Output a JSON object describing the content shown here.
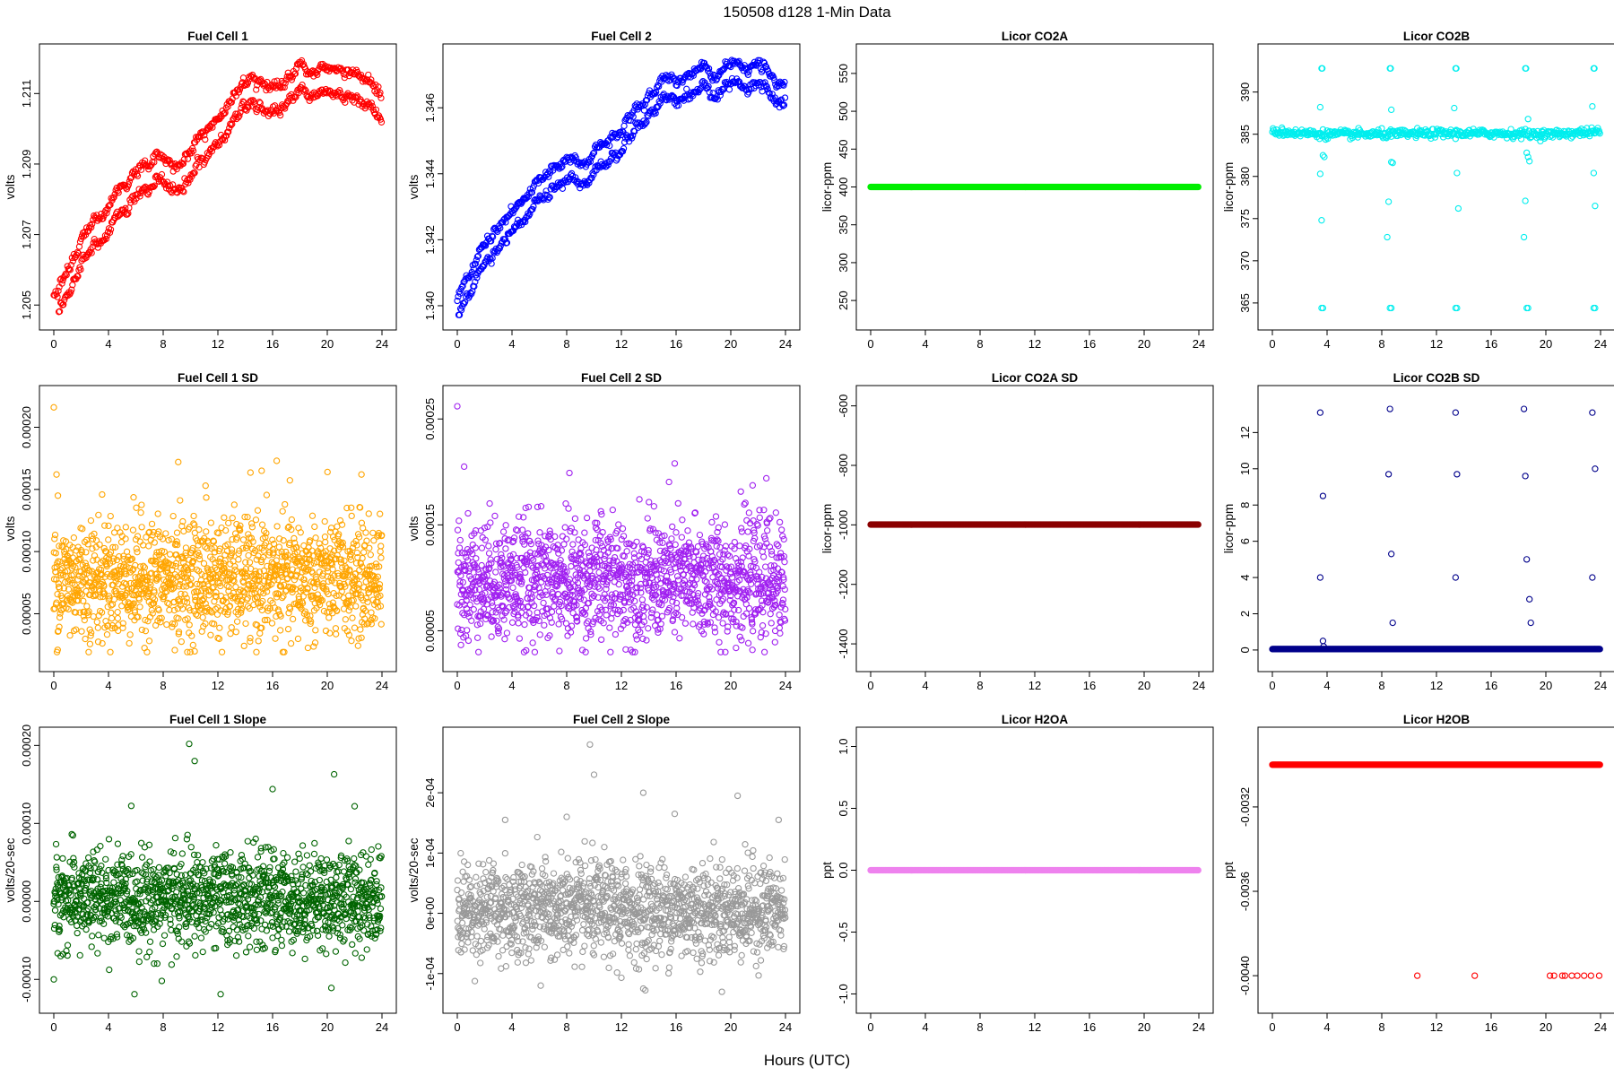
{
  "figure": {
    "title": "150508   d128   1-Min Data",
    "xlabel": "Hours (UTC)"
  },
  "chart_data": [
    {
      "type": "scatter",
      "title": "Fuel Cell 1",
      "ylabel": "volts",
      "color": "#ff0000",
      "xlim": [
        0,
        24
      ],
      "ylim": [
        1.2047,
        1.212
      ],
      "xticks": [
        0,
        4,
        8,
        12,
        16,
        20,
        24
      ],
      "yticks": [
        1.205,
        1.207,
        1.209,
        1.211
      ],
      "ytick_labels": [
        "1.205",
        "1.207",
        "1.209",
        "1.211"
      ],
      "trend": {
        "kind": "paired",
        "points": [
          [
            0,
            1.2049
          ],
          [
            1,
            1.2057
          ],
          [
            2,
            1.2065
          ],
          [
            3,
            1.207
          ],
          [
            4,
            1.2074
          ],
          [
            5,
            1.208
          ],
          [
            6,
            1.2085
          ],
          [
            7,
            1.2086
          ],
          [
            8,
            1.2089
          ],
          [
            9,
            1.2086
          ],
          [
            10,
            1.209
          ],
          [
            11,
            1.2095
          ],
          [
            12,
            1.21
          ],
          [
            13,
            1.2104
          ],
          [
            14,
            1.211
          ],
          [
            15,
            1.2111
          ],
          [
            16,
            1.2109
          ],
          [
            17,
            1.2111
          ],
          [
            18,
            1.2114
          ],
          [
            19,
            1.2111
          ],
          [
            20,
            1.2114
          ],
          [
            21,
            1.2113
          ],
          [
            22,
            1.2113
          ],
          [
            23,
            1.211
          ],
          [
            24,
            1.2107
          ]
        ],
        "offset": 0.0007,
        "jitter": 0.00012
      }
    },
    {
      "type": "scatter",
      "title": "Fuel Cell 2",
      "ylabel": "volts",
      "color": "#0000ff",
      "xlim": [
        0,
        24
      ],
      "ylim": [
        1.3397,
        1.3475
      ],
      "xticks": [
        0,
        4,
        8,
        12,
        16,
        20,
        24
      ],
      "yticks": [
        1.34,
        1.342,
        1.344,
        1.346
      ],
      "ytick_labels": [
        "1.340",
        "1.342",
        "1.344",
        "1.346"
      ],
      "trend": {
        "kind": "paired",
        "points": [
          [
            0,
            1.34
          ],
          [
            1,
            1.3406
          ],
          [
            2,
            1.3414
          ],
          [
            3,
            1.342
          ],
          [
            4,
            1.3425
          ],
          [
            5,
            1.343
          ],
          [
            6,
            1.3436
          ],
          [
            7,
            1.3438
          ],
          [
            8,
            1.3442
          ],
          [
            9,
            1.3439
          ],
          [
            10,
            1.3443
          ],
          [
            11,
            1.3448
          ],
          [
            12,
            1.3452
          ],
          [
            13,
            1.3456
          ],
          [
            14,
            1.3461
          ],
          [
            15,
            1.3465
          ],
          [
            16,
            1.3465
          ],
          [
            17,
            1.3466
          ],
          [
            18,
            1.347
          ],
          [
            19,
            1.3467
          ],
          [
            20,
            1.347
          ],
          [
            21,
            1.3469
          ],
          [
            22,
            1.347
          ],
          [
            23,
            1.3467
          ],
          [
            24,
            1.3464
          ]
        ],
        "offset": 0.0006,
        "jitter": 0.00012
      }
    },
    {
      "type": "scatter",
      "title": "Licor CO2A",
      "ylabel": "licor-ppm",
      "color": "#00ee00",
      "xlim": [
        0,
        24
      ],
      "ylim": [
        230,
        570
      ],
      "xticks": [
        0,
        4,
        8,
        12,
        16,
        20,
        24
      ],
      "yticks": [
        250,
        300,
        350,
        400,
        450,
        500,
        550
      ],
      "ytick_labels": [
        "250",
        "300",
        "350",
        "400",
        "450",
        "500",
        "550"
      ],
      "trend": {
        "kind": "constant",
        "value": 400
      }
    },
    {
      "type": "scatter",
      "title": "Licor CO2B",
      "ylabel": "licor-ppm",
      "color": "#00eeee",
      "xlim": [
        0,
        24
      ],
      "ylim": [
        363.5,
        394
      ],
      "xticks": [
        0,
        4,
        8,
        12,
        16,
        20,
        24
      ],
      "yticks": [
        365,
        370,
        375,
        380,
        385,
        390
      ],
      "ytick_labels": [
        "365",
        "370",
        "375",
        "380",
        "385",
        "390"
      ],
      "trend": {
        "kind": "band",
        "points": [
          [
            0,
            385.3
          ],
          [
            4,
            385.0
          ],
          [
            8,
            385.0
          ],
          [
            12,
            385.1
          ],
          [
            16,
            385.1
          ],
          [
            20,
            385.0
          ],
          [
            24,
            385.3
          ]
        ],
        "jitter": 0.25
      },
      "points": [
        [
          3.6,
          392.8
        ],
        [
          3.65,
          392.8
        ],
        [
          8.6,
          392.8
        ],
        [
          8.65,
          392.8
        ],
        [
          13.4,
          392.8
        ],
        [
          13.45,
          392.8
        ],
        [
          18.5,
          392.8
        ],
        [
          18.55,
          392.8
        ],
        [
          23.5,
          392.8
        ],
        [
          23.55,
          392.8
        ],
        [
          3.5,
          388.2
        ],
        [
          8.7,
          387.9
        ],
        [
          13.3,
          388.1
        ],
        [
          18.7,
          386.8
        ],
        [
          23.4,
          388.3
        ],
        [
          3.7,
          382.5
        ],
        [
          3.8,
          382.3
        ],
        [
          8.7,
          381.7
        ],
        [
          8.8,
          381.6
        ],
        [
          18.6,
          382.8
        ],
        [
          18.7,
          382.3
        ],
        [
          18.8,
          381.8
        ],
        [
          3.5,
          380.3
        ],
        [
          13.5,
          380.4
        ],
        [
          23.5,
          380.4
        ],
        [
          3.6,
          374.8
        ],
        [
          8.5,
          377.0
        ],
        [
          13.6,
          376.2
        ],
        [
          18.5,
          377.1
        ],
        [
          23.6,
          376.5
        ],
        [
          8.4,
          372.8
        ],
        [
          18.4,
          372.8
        ],
        [
          3.6,
          364.4
        ],
        [
          3.7,
          364.4
        ],
        [
          8.6,
          364.4
        ],
        [
          8.7,
          364.4
        ],
        [
          13.4,
          364.4
        ],
        [
          13.5,
          364.4
        ],
        [
          18.6,
          364.4
        ],
        [
          18.7,
          364.4
        ],
        [
          23.5,
          364.4
        ],
        [
          23.6,
          364.4
        ]
      ]
    },
    {
      "type": "scatter",
      "title": "Fuel Cell 1 SD",
      "ylabel": "volts",
      "color": "#ffa500",
      "xlim": [
        0,
        24
      ],
      "ylim": [
        1.5e-05,
        0.000222
      ],
      "xticks": [
        0,
        4,
        8,
        12,
        16,
        20,
        24
      ],
      "yticks": [
        5e-05,
        0.0001,
        0.00015,
        0.0002
      ],
      "ytick_labels": [
        "0.00005",
        "0.00010",
        "0.00015",
        "0.00020"
      ],
      "trend": {
        "kind": "noise",
        "mean": 7.8e-05,
        "sd": 2.4e-05
      },
      "points": [
        [
          0,
          0.000216
        ],
        [
          0.2,
          0.000162
        ],
        [
          9.1,
          0.000172
        ],
        [
          16.3,
          0.000173
        ],
        [
          0.3,
          0.000145
        ],
        [
          22.5,
          0.000162
        ],
        [
          11.1,
          0.000153
        ],
        [
          15.2,
          0.000165
        ]
      ]
    },
    {
      "type": "scatter",
      "title": "Fuel Cell 2 SD",
      "ylabel": "volts",
      "color": "#a020f0",
      "xlim": [
        0,
        24
      ],
      "ylim": [
        2.5e-05,
        0.000268
      ],
      "xticks": [
        0,
        4,
        8,
        12,
        16,
        20,
        24
      ],
      "yticks": [
        5e-05,
        0.00015,
        0.00025
      ],
      "ytick_labels": [
        "0.00005",
        "0.00015",
        "0.00025"
      ],
      "trend": {
        "kind": "noise",
        "mean": 9.8e-05,
        "sd": 2.8e-05
      },
      "points": [
        [
          0,
          0.000262
        ],
        [
          0.5,
          0.000205
        ],
        [
          15.9,
          0.000208
        ],
        [
          8.2,
          0.000199
        ],
        [
          22.6,
          0.000194
        ]
      ]
    },
    {
      "type": "scatter",
      "title": "Licor CO2A SD",
      "ylabel": "licor-ppm",
      "color": "#8b0000",
      "xlim": [
        0,
        24
      ],
      "ylim": [
        -1445,
        -580
      ],
      "xticks": [
        0,
        4,
        8,
        12,
        16,
        20,
        24
      ],
      "yticks": [
        -1400,
        -1200,
        -1000,
        -800,
        -600
      ],
      "ytick_labels": [
        "-1400",
        "-1200",
        "-1000",
        "-800",
        "-600"
      ],
      "trend": {
        "kind": "constant",
        "value": -999
      }
    },
    {
      "type": "scatter",
      "title": "Licor CO2B SD",
      "ylabel": "licor-ppm",
      "color": "#00008b",
      "xlim": [
        0,
        24
      ],
      "ylim": [
        -0.4,
        13.8
      ],
      "xticks": [
        0,
        4,
        8,
        12,
        16,
        20,
        24
      ],
      "yticks": [
        0,
        2,
        4,
        6,
        8,
        10,
        12
      ],
      "ytick_labels": [
        "0",
        "2",
        "4",
        "6",
        "8",
        "10",
        "12"
      ],
      "trend": {
        "kind": "constant",
        "value": 0.05
      },
      "points": [
        [
          3.5,
          13.1
        ],
        [
          8.6,
          13.3
        ],
        [
          13.4,
          13.1
        ],
        [
          18.4,
          13.3
        ],
        [
          23.4,
          13.1
        ],
        [
          3.7,
          8.5
        ],
        [
          8.5,
          9.7
        ],
        [
          13.5,
          9.7
        ],
        [
          18.5,
          9.6
        ],
        [
          23.6,
          10.0
        ],
        [
          8.7,
          5.3
        ],
        [
          18.6,
          5.0
        ],
        [
          3.5,
          4.0
        ],
        [
          13.4,
          4.0
        ],
        [
          23.4,
          4.0
        ],
        [
          18.8,
          2.8
        ],
        [
          8.8,
          1.5
        ],
        [
          18.9,
          1.5
        ],
        [
          3.7,
          0.5
        ],
        [
          3.75,
          0.2
        ]
      ]
    },
    {
      "type": "scatter",
      "title": "Fuel Cell 1 Slope",
      "ylabel": "volts/20-sec",
      "color": "#006400",
      "xlim": [
        0,
        24
      ],
      "ylim": [
        -0.000125,
        0.000205
      ],
      "xticks": [
        0,
        4,
        8,
        12,
        16,
        20,
        24
      ],
      "yticks": [
        -0.0001,
        0.0,
        0.0001,
        0.0002
      ],
      "ytick_labels": [
        "-0.00010",
        "0.00000",
        "0.00010",
        "0.00020"
      ],
      "trend": {
        "kind": "noise",
        "mean": 3e-06,
        "sd": 3e-05
      },
      "points": [
        [
          9.9,
          0.000202
        ],
        [
          10.3,
          0.00018
        ],
        [
          16.0,
          0.000144
        ],
        [
          20.5,
          0.000163
        ],
        [
          22.0,
          0.000122
        ],
        [
          5.9,
          -0.000119
        ],
        [
          12.2,
          -0.000119
        ],
        [
          20.3,
          -0.000111
        ],
        [
          0,
          -0.0001
        ],
        [
          7.9,
          -0.000102
        ]
      ]
    },
    {
      "type": "scatter",
      "title": "Fuel Cell 2 Slope",
      "ylabel": "volts/20-sec",
      "color": "#999999",
      "xlim": [
        0,
        24
      ],
      "ylim": [
        -0.000142,
        0.000285
      ],
      "xticks": [
        0,
        4,
        8,
        12,
        16,
        20,
        24
      ],
      "yticks": [
        -0.0001,
        0.0,
        0.0001,
        0.0002
      ],
      "ytick_labels": [
        "-1e-04",
        "0e+00",
        "1e-04",
        "2e-04"
      ],
      "trend": {
        "kind": "noise",
        "mean": 5e-06,
        "sd": 4e-05
      },
      "points": [
        [
          9.7,
          0.00028
        ],
        [
          10.0,
          0.00023
        ],
        [
          13.6,
          0.0002
        ],
        [
          20.5,
          0.000195
        ],
        [
          15.9,
          0.000165
        ],
        [
          8.0,
          0.00016
        ],
        [
          3.5,
          0.000155
        ],
        [
          23.5,
          0.000155
        ],
        [
          6.1,
          -0.00012
        ],
        [
          13.6,
          -0.000125
        ],
        [
          12.0,
          -0.000107
        ]
      ]
    },
    {
      "type": "scatter",
      "title": "Licor H2OA",
      "ylabel": "ppt",
      "color": "#ee82ee",
      "xlim": [
        0,
        24
      ],
      "ylim": [
        -1.04,
        1.04
      ],
      "xticks": [
        0,
        4,
        8,
        12,
        16,
        20,
        24
      ],
      "yticks": [
        -1.0,
        -0.5,
        0.0,
        0.5,
        1.0
      ],
      "ytick_labels": [
        "-1.0",
        "-0.5",
        "0.0",
        "0.5",
        "1.0"
      ],
      "trend": {
        "kind": "constant",
        "value": 0.0
      }
    },
    {
      "type": "scatter",
      "title": "Licor H2OB",
      "ylabel": "ppt",
      "color": "#ff0000",
      "xlim": [
        0,
        24
      ],
      "ylim": [
        -0.00411,
        -0.00289
      ],
      "xticks": [
        0,
        4,
        8,
        12,
        16,
        20,
        24
      ],
      "yticks": [
        -0.004,
        -0.0036,
        -0.0032
      ],
      "ytick_labels": [
        "-0.0040",
        "-0.0036",
        "-0.0032"
      ],
      "trend": {
        "kind": "constant",
        "value": -0.003
      },
      "points": [
        [
          10.6,
          -0.004
        ],
        [
          14.8,
          -0.004
        ],
        [
          20.3,
          -0.004
        ],
        [
          20.6,
          -0.004
        ],
        [
          21.2,
          -0.004
        ],
        [
          21.4,
          -0.004
        ],
        [
          21.9,
          -0.004
        ],
        [
          22.3,
          -0.004
        ],
        [
          22.8,
          -0.004
        ],
        [
          23.3,
          -0.004
        ],
        [
          23.9,
          -0.004
        ]
      ]
    }
  ]
}
